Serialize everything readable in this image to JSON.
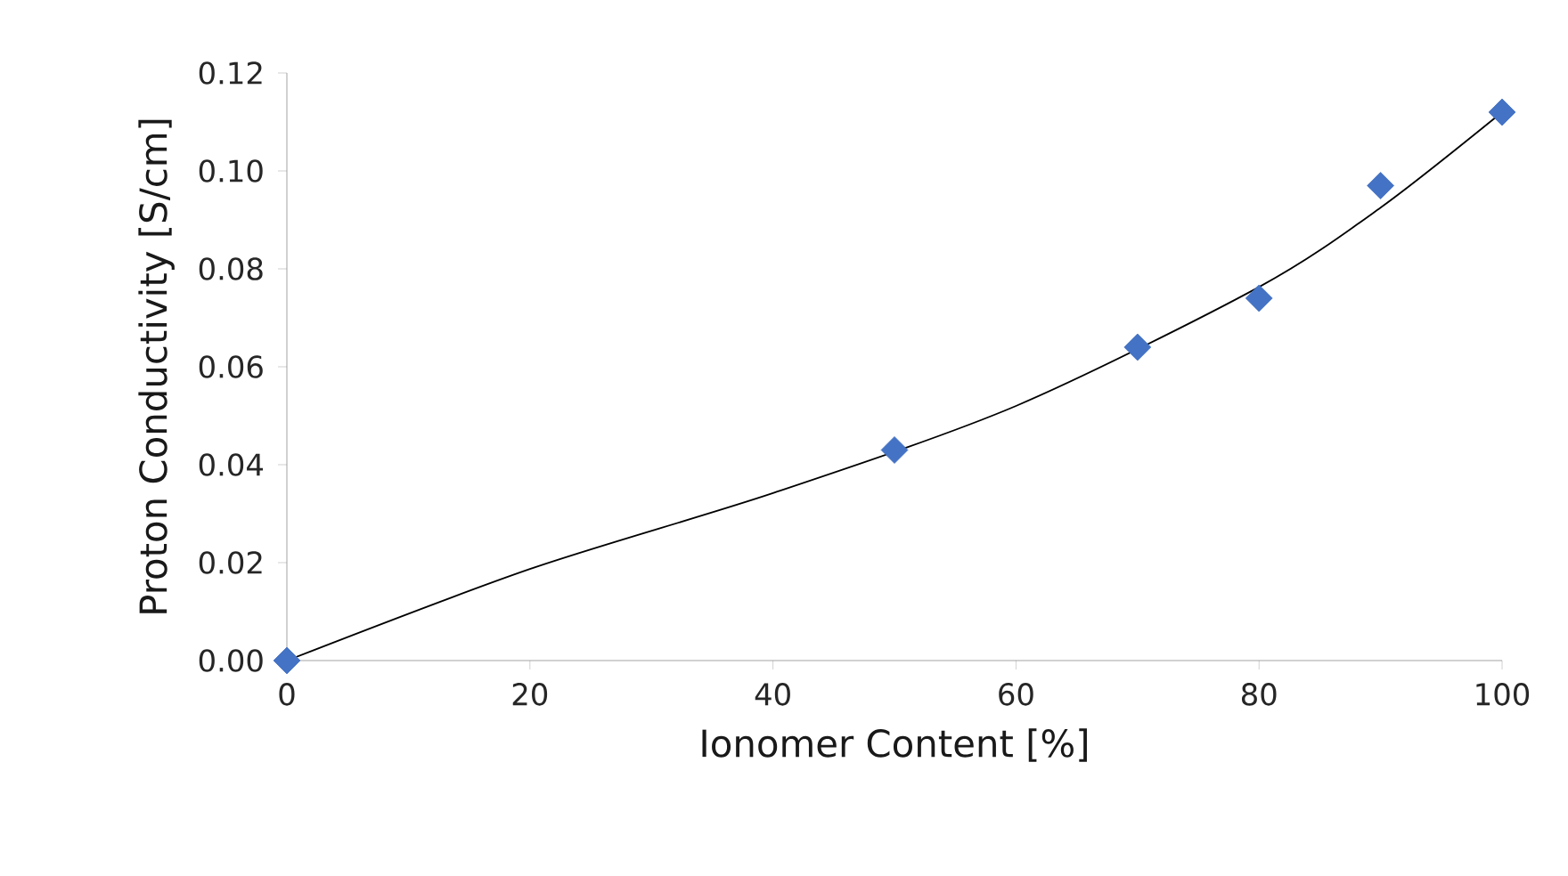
{
  "chart_data": {
    "type": "scatter",
    "xlabel": "Ionomer Content [%]",
    "ylabel": "Proton Conductivity [S/cm]",
    "xlim": [
      0,
      100
    ],
    "ylim": [
      0,
      0.12
    ],
    "xticks": [
      0,
      20,
      40,
      60,
      80,
      100
    ],
    "yticks": [
      {
        "value": 0,
        "label": "0.00"
      },
      {
        "value": 0.02,
        "label": "0.02"
      },
      {
        "value": 0.04,
        "label": "0.04"
      },
      {
        "value": 0.06,
        "label": "0.06"
      },
      {
        "value": 0.08,
        "label": "0.08"
      },
      {
        "value": 0.1,
        "label": "0.10"
      },
      {
        "value": 0.12,
        "label": "0.12"
      }
    ],
    "series": [
      {
        "type": "line",
        "color": "#000000",
        "marker": "none",
        "line_style": "solid",
        "x": [
          0,
          20,
          40,
          60,
          80,
          90,
          100
        ],
        "values": [
          0,
          0.0187,
          0.0342,
          0.052,
          0.0763,
          0.0925,
          0.112
        ]
      },
      {
        "color": "#4472c4",
        "marker": "diamond",
        "x": [
          0,
          50,
          70,
          80,
          90,
          100
        ],
        "values": [
          0,
          0.043,
          0.064,
          0.074,
          0.097,
          0.112
        ]
      }
    ]
  }
}
